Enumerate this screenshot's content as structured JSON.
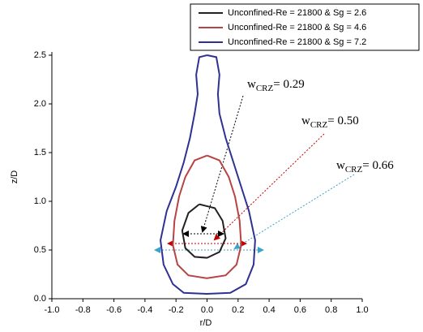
{
  "chart_data": {
    "type": "line",
    "xlabel": "r/D",
    "ylabel": "z/D",
    "xlim": [
      -1.0,
      1.0
    ],
    "ylim": [
      0.0,
      2.5
    ],
    "xticks": [
      {
        "value": -1.0,
        "label": "-1.0"
      },
      {
        "value": -0.8,
        "label": "-0.8"
      },
      {
        "value": -0.6,
        "label": "-0.6"
      },
      {
        "value": -0.4,
        "label": "-0.4"
      },
      {
        "value": -0.2,
        "label": "-0.2"
      },
      {
        "value": 0.0,
        "label": "0.0"
      },
      {
        "value": 0.2,
        "label": "0.2"
      },
      {
        "value": 0.4,
        "label": "0.4"
      },
      {
        "value": 0.6,
        "label": "0.6"
      },
      {
        "value": 0.8,
        "label": "0.8"
      },
      {
        "value": 1.0,
        "label": "1.0"
      }
    ],
    "yticks": [
      {
        "value": 0.0,
        "label": "0.0"
      },
      {
        "value": 0.5,
        "label": "0.5"
      },
      {
        "value": 1.0,
        "label": "1.0"
      },
      {
        "value": 1.5,
        "label": "1.5"
      },
      {
        "value": 2.0,
        "label": "2.0"
      },
      {
        "value": 2.5,
        "label": "2.5"
      }
    ],
    "grid": false,
    "legend": "top-right",
    "series": [
      {
        "name": "Unconfined-Re = 21800 & Sg = 2.6",
        "color": "#222222",
        "x": [
          -0.05,
          0.05,
          0.1,
          0.12,
          0.08,
          0,
          -0.08,
          -0.14,
          -0.16,
          -0.12,
          -0.05
        ],
        "values": [
          0.97,
          0.93,
          0.8,
          0.62,
          0.48,
          0.42,
          0.43,
          0.52,
          0.7,
          0.88,
          0.97
        ]
      },
      {
        "name": "Unconfined-Re = 21800 & Sg = 4.6",
        "color": "#b84343",
        "x": [
          0,
          0.08,
          0.14,
          0.18,
          0.21,
          0.22,
          0.19,
          0.12,
          0,
          -0.12,
          -0.19,
          -0.22,
          -0.21,
          -0.18,
          -0.14,
          -0.08,
          0
        ],
        "values": [
          1.47,
          1.42,
          1.25,
          1.05,
          0.8,
          0.55,
          0.35,
          0.24,
          0.21,
          0.24,
          0.35,
          0.55,
          0.8,
          1.05,
          1.25,
          1.42,
          1.47
        ]
      },
      {
        "name": "Unconfined-Re = 21800 & Sg = 7.2",
        "color": "#2e3192",
        "x": [
          0,
          0.06,
          0.08,
          0.07,
          0.08,
          0.12,
          0.17,
          0.22,
          0.27,
          0.31,
          0.3,
          0.25,
          0.15,
          0,
          -0.15,
          -0.22,
          -0.28,
          -0.3,
          -0.26,
          -0.2,
          -0.15,
          -0.11,
          -0.08,
          -0.06,
          -0.07,
          -0.05,
          0
        ],
        "values": [
          2.5,
          2.48,
          2.3,
          2.1,
          1.9,
          1.65,
          1.4,
          1.15,
          0.9,
          0.6,
          0.35,
          0.15,
          0.06,
          0.05,
          0.06,
          0.15,
          0.35,
          0.6,
          0.9,
          1.15,
          1.4,
          1.65,
          1.9,
          2.1,
          2.3,
          2.48,
          2.5
        ]
      }
    ],
    "annotations": [
      {
        "base": "w",
        "sub": "CRZ",
        "rest": "= 0.29"
      },
      {
        "base": "w",
        "sub": "CRZ",
        "rest": "= 0.50"
      },
      {
        "base": "w",
        "sub": "CRZ",
        "rest": "= 0.66"
      }
    ]
  }
}
